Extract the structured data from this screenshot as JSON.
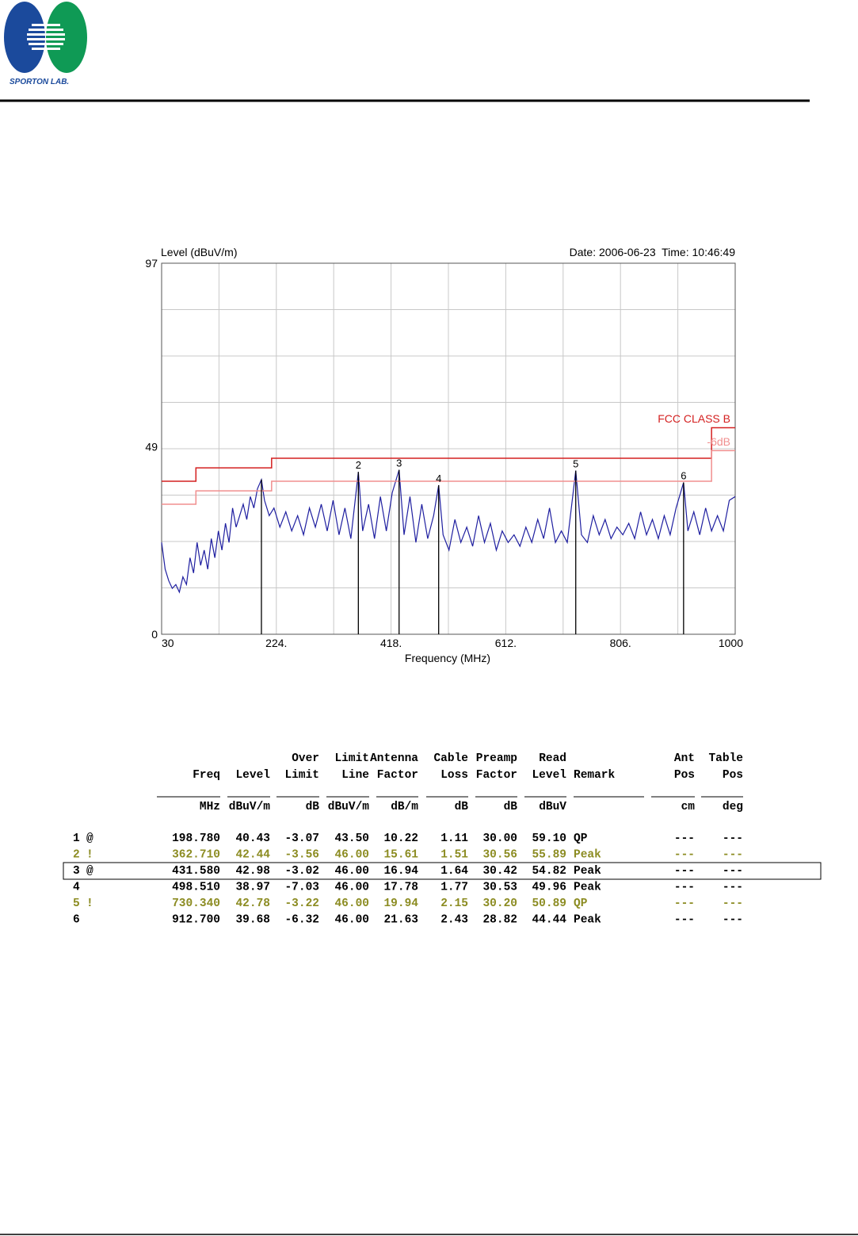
{
  "header": {
    "logo_text": "SPORTON LAB."
  },
  "chart_data": {
    "type": "line",
    "ylabel": "Level (dBuV/m)",
    "date_time": "Date: 2006-06-23  Time: 10:46:49",
    "xlabel": "Frequency (MHz)",
    "xlim": [
      30,
      1000
    ],
    "ylim": [
      0,
      97
    ],
    "xticks": [
      30,
      {
        "value": 224,
        "label": "224."
      },
      {
        "value": 418,
        "label": "418."
      },
      {
        "value": 612,
        "label": "612."
      },
      {
        "value": 806,
        "label": "806."
      },
      1000
    ],
    "yticks": [
      0,
      49,
      97
    ],
    "grid": true,
    "series": [
      {
        "color": "#1f1fa0",
        "x": [
          30,
          36,
          42,
          48,
          54,
          60,
          66,
          72,
          78,
          84,
          90,
          96,
          102,
          108,
          114,
          120,
          126,
          132,
          138,
          144,
          150,
          156,
          162,
          168,
          174,
          180,
          186,
          192,
          198.78,
          204,
          212,
          220,
          230,
          240,
          250,
          260,
          270,
          280,
          290,
          300,
          310,
          320,
          330,
          340,
          350,
          362.71,
          370,
          380,
          390,
          400,
          410,
          420,
          431.58,
          440,
          450,
          460,
          470,
          480,
          490,
          498.51,
          506,
          516,
          526,
          536,
          546,
          556,
          566,
          576,
          586,
          596,
          606,
          616,
          626,
          636,
          646,
          656,
          666,
          676,
          686,
          696,
          706,
          716,
          730.34,
          740,
          750,
          760,
          770,
          780,
          790,
          800,
          810,
          820,
          830,
          840,
          850,
          860,
          870,
          880,
          890,
          900,
          912.7,
          920,
          930,
          940,
          950,
          960,
          970,
          980,
          990,
          1000
        ],
        "values": [
          24,
          17,
          14,
          12,
          13,
          11,
          15,
          13,
          20,
          16,
          24,
          18,
          22,
          17,
          25,
          20,
          27,
          22,
          29,
          24,
          33,
          28,
          31,
          34,
          30,
          36,
          33,
          38,
          40.43,
          35,
          31,
          33,
          28,
          32,
          27,
          31,
          26,
          33,
          28,
          34,
          27,
          35,
          26,
          33,
          25,
          42.44,
          27,
          34,
          25,
          36,
          27,
          37,
          42.98,
          26,
          36,
          24,
          34,
          25,
          31,
          38.97,
          26,
          22,
          30,
          24,
          28,
          23,
          31,
          24,
          29,
          22,
          27,
          24,
          26,
          23,
          28,
          24,
          30,
          25,
          33,
          24,
          27,
          24,
          42.78,
          26,
          24,
          31,
          26,
          30,
          25,
          28,
          26,
          29,
          25,
          32,
          26,
          30,
          25,
          31,
          26,
          33,
          39.68,
          27,
          32,
          26,
          33,
          27,
          31,
          27,
          35,
          36
        ]
      },
      {
        "name": "FCC CLASS B",
        "color": "#d42020",
        "x": [
          30,
          88,
          88,
          216,
          216,
          960,
          960,
          1000
        ],
        "values": [
          40,
          40,
          43.5,
          43.5,
          46,
          46,
          54,
          54
        ]
      },
      {
        "name": "-6dB",
        "color": "#f08f8f",
        "x": [
          30,
          88,
          88,
          216,
          216,
          960,
          960,
          1000
        ],
        "values": [
          34,
          34,
          37.5,
          37.5,
          40,
          40,
          48,
          48
        ]
      }
    ],
    "markers": {
      "color": "#000000",
      "labels": [
        null,
        "2",
        "3",
        "4",
        "5",
        "6"
      ],
      "x": [
        198.78,
        362.71,
        431.58,
        498.51,
        730.34,
        912.7
      ],
      "values": [
        40.43,
        42.44,
        42.98,
        38.97,
        42.78,
        39.68
      ]
    }
  },
  "table": {
    "columns": [
      {
        "top": null,
        "bottom": "Freq",
        "unit": "MHz"
      },
      {
        "top": null,
        "bottom": "Level",
        "unit": "dBuV/m"
      },
      {
        "top": "Over",
        "bottom": "Limit",
        "unit": "dB"
      },
      {
        "top": "Limit",
        "bottom": "Line",
        "unit": "dBuV/m"
      },
      {
        "top": "Antenna",
        "bottom": "Factor",
        "unit": "dB/m"
      },
      {
        "top": "Cable",
        "bottom": "Loss",
        "unit": "dB"
      },
      {
        "top": "Preamp",
        "bottom": "Factor",
        "unit": "dB"
      },
      {
        "top": "Read",
        "bottom": "Level",
        "unit": "dBuV"
      },
      {
        "top": null,
        "bottom": "Remark",
        "unit": null
      },
      {
        "top": "Ant",
        "bottom": "Pos",
        "unit": "cm"
      },
      {
        "top": "Table",
        "bottom": "Pos",
        "unit": "deg"
      }
    ],
    "rows": [
      {
        "no": "1",
        "flag": "@",
        "color": "#000000",
        "boxed": false,
        "cells": [
          "198.780",
          "40.43",
          "-3.07",
          "43.50",
          "10.22",
          "1.11",
          "30.00",
          "59.10",
          "QP",
          "---",
          "---"
        ]
      },
      {
        "no": "2",
        "flag": "!",
        "color": "#8c8c22",
        "boxed": false,
        "cells": [
          "362.710",
          "42.44",
          "-3.56",
          "46.00",
          "15.61",
          "1.51",
          "30.56",
          "55.89",
          "Peak",
          "---",
          "---"
        ]
      },
      {
        "no": "3",
        "flag": "@",
        "color": "#000000",
        "boxed": true,
        "cells": [
          "431.580",
          "42.98",
          "-3.02",
          "46.00",
          "16.94",
          "1.64",
          "30.42",
          "54.82",
          "Peak",
          "---",
          "---"
        ]
      },
      {
        "no": "4",
        "flag": null,
        "color": "#000000",
        "boxed": false,
        "cells": [
          "498.510",
          "38.97",
          "-7.03",
          "46.00",
          "17.78",
          "1.77",
          "30.53",
          "49.96",
          "Peak",
          "---",
          "---"
        ]
      },
      {
        "no": "5",
        "flag": "!",
        "color": "#8c8c22",
        "boxed": false,
        "cells": [
          "730.340",
          "42.78",
          "-3.22",
          "46.00",
          "19.94",
          "2.15",
          "30.20",
          "50.89",
          "QP",
          "---",
          "---"
        ]
      },
      {
        "no": "6",
        "flag": null,
        "color": "#000000",
        "boxed": false,
        "cells": [
          "912.700",
          "39.68",
          "-6.32",
          "46.00",
          "21.63",
          "2.43",
          "28.82",
          "44.44",
          "Peak",
          "---",
          "---"
        ]
      }
    ]
  }
}
